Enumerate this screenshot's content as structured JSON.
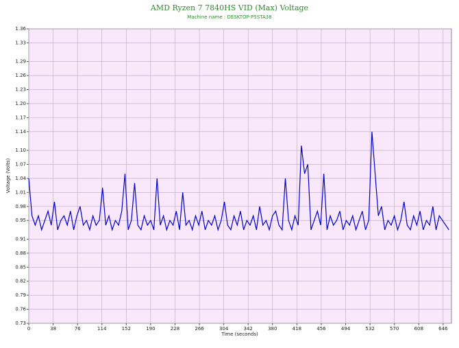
{
  "chart_data": {
    "type": "line",
    "title": "AMD Ryzen 7 7840HS VID (Max) Voltage",
    "subtitle": "Machine name : DESKTOP-P5STA38",
    "x_label": "Time (seconds)",
    "y_label": "Voltage (Volts)",
    "grid": true,
    "xlim": [
      0,
      659
    ],
    "ylim": [
      0.73,
      1.36
    ],
    "xticks": [
      0,
      38,
      76,
      114,
      152,
      190,
      228,
      266,
      304,
      342,
      380,
      418,
      456,
      494,
      532,
      570,
      608,
      646
    ],
    "yticks": [
      0.73,
      0.76,
      0.79,
      0.82,
      0.85,
      0.88,
      0.91,
      0.95,
      0.98,
      1.01,
      1.04,
      1.07,
      {
        "value": 1.1,
        "label": "1.10"
      },
      1.14,
      1.17,
      {
        "value": 1.2,
        "label": "1.20"
      },
      1.23,
      1.26,
      1.29,
      1.33,
      1.36
    ],
    "x": [
      0,
      5,
      10,
      15,
      20,
      25,
      30,
      35,
      40,
      45,
      50,
      55,
      60,
      65,
      70,
      75,
      80,
      85,
      90,
      95,
      100,
      105,
      110,
      115,
      120,
      125,
      130,
      135,
      140,
      145,
      150,
      155,
      160,
      165,
      170,
      175,
      180,
      185,
      190,
      195,
      200,
      205,
      210,
      215,
      220,
      225,
      230,
      235,
      240,
      245,
      250,
      255,
      260,
      265,
      270,
      275,
      280,
      285,
      290,
      295,
      300,
      305,
      310,
      315,
      320,
      325,
      330,
      335,
      340,
      345,
      350,
      355,
      360,
      365,
      370,
      375,
      380,
      385,
      390,
      395,
      400,
      405,
      410,
      415,
      420,
      425,
      430,
      435,
      440,
      445,
      450,
      455,
      460,
      465,
      470,
      475,
      480,
      485,
      490,
      495,
      500,
      505,
      510,
      515,
      520,
      525,
      530,
      535,
      540,
      545,
      550,
      555,
      560,
      565,
      570,
      575,
      580,
      585,
      590,
      595,
      600,
      605,
      610,
      615,
      620,
      625,
      630,
      635,
      640,
      645,
      650,
      655
    ],
    "series": [
      {
        "name": "VID (Max)",
        "color": "#0000cc",
        "values": [
          1.04,
          0.96,
          0.94,
          0.96,
          0.93,
          0.95,
          0.97,
          0.94,
          0.99,
          0.93,
          0.95,
          0.96,
          0.94,
          0.97,
          0.93,
          0.96,
          0.98,
          0.94,
          0.95,
          0.93,
          0.96,
          0.94,
          0.95,
          1.02,
          0.94,
          0.96,
          0.93,
          0.95,
          0.94,
          0.97,
          1.05,
          0.93,
          0.95,
          1.03,
          0.94,
          0.93,
          0.96,
          0.94,
          0.95,
          0.93,
          1.04,
          0.94,
          0.96,
          0.93,
          0.95,
          0.94,
          0.97,
          0.93,
          1.01,
          0.94,
          0.95,
          0.93,
          0.96,
          0.94,
          0.97,
          0.93,
          0.95,
          0.94,
          0.96,
          0.93,
          0.95,
          0.99,
          0.94,
          0.93,
          0.96,
          0.94,
          0.97,
          0.93,
          0.95,
          0.94,
          0.96,
          0.93,
          0.98,
          0.94,
          0.95,
          0.93,
          0.96,
          0.97,
          0.94,
          0.93,
          1.04,
          0.95,
          0.93,
          0.96,
          0.94,
          1.11,
          1.05,
          1.07,
          0.93,
          0.95,
          0.97,
          0.94,
          1.05,
          0.93,
          0.96,
          0.94,
          0.95,
          0.97,
          0.93,
          0.95,
          0.94,
          0.96,
          0.93,
          0.95,
          0.97,
          0.93,
          0.95,
          1.14,
          1.05,
          0.96,
          0.98,
          0.93,
          0.95,
          0.94,
          0.96,
          0.93,
          0.95,
          0.99,
          0.94,
          0.93,
          0.96,
          0.94,
          0.97,
          0.93,
          0.95,
          0.94,
          0.98,
          0.93,
          0.96,
          0.95,
          0.94,
          0.93
        ]
      }
    ]
  }
}
